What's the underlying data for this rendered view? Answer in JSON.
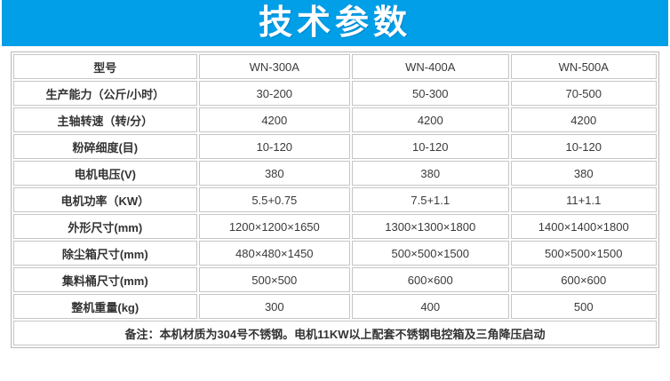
{
  "banner": {
    "title": "技术参数",
    "bg_color": "#029FE9",
    "text_color": "#ffffff"
  },
  "table": {
    "header": {
      "label": "型号",
      "models": [
        "WN-300A",
        "WN-400A",
        "WN-500A"
      ]
    },
    "rows": [
      {
        "label": "生产能力（公斤/小时）",
        "values": [
          "30-200",
          "50-300",
          "70-500"
        ]
      },
      {
        "label": "主轴转速（转/分）",
        "values": [
          "4200",
          "4200",
          "4200"
        ]
      },
      {
        "label": "粉碎细度(目)",
        "values": [
          "10-120",
          "10-120",
          "10-120"
        ]
      },
      {
        "label": "电机电压(V)",
        "values": [
          "380",
          "380",
          "380"
        ]
      },
      {
        "label": "电机功率（KW）",
        "values": [
          "5.5+0.75",
          "7.5+1.1",
          "11+1.1"
        ]
      },
      {
        "label": "外形尺寸(mm)",
        "values": [
          "1200×1200×1650",
          "1300×1300×1800",
          "1400×1400×1800"
        ]
      },
      {
        "label": "除尘箱尺寸(mm)",
        "values": [
          "480×480×1450",
          "500×500×1500",
          "500×500×1500"
        ]
      },
      {
        "label": "集料桶尺寸(mm)",
        "values": [
          "500×500",
          "600×600",
          "600×600"
        ]
      },
      {
        "label": "整机重量(kg)",
        "values": [
          "300",
          "400",
          "500"
        ]
      }
    ],
    "note": "备注：本机材质为304号不锈钢。电机11KW以上配套不锈钢电控箱及三角降压启动",
    "border_color": "#c5c5c5"
  }
}
